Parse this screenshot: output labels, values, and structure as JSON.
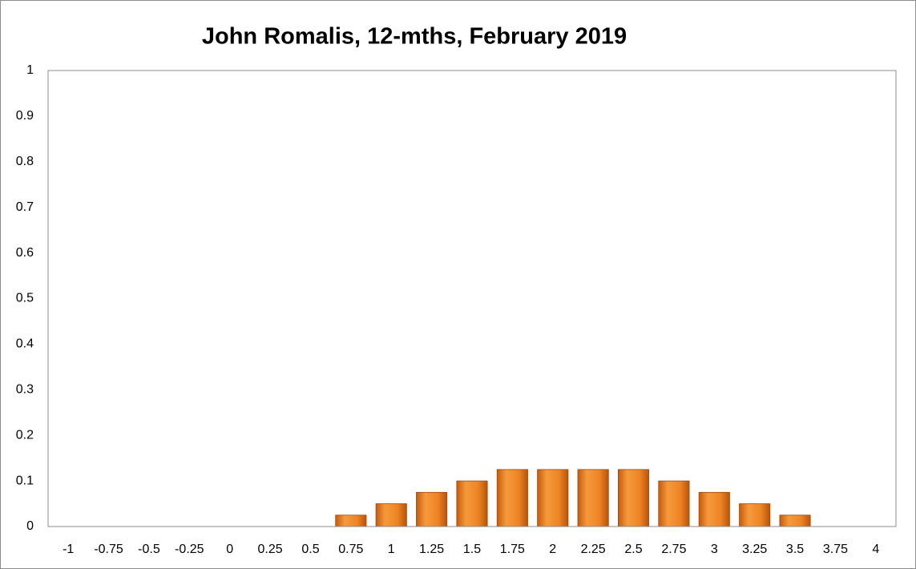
{
  "chart_data": {
    "type": "bar",
    "title": "John Romalis, 12-mths, February 2019",
    "categories": [
      "-1",
      "-0.75",
      "-0.5",
      "-0.25",
      "0",
      "0.25",
      "0.5",
      "0.75",
      "1",
      "1.25",
      "1.5",
      "1.75",
      "2",
      "2.25",
      "2.5",
      "2.75",
      "3",
      "3.25",
      "3.5",
      "3.75",
      "4"
    ],
    "values": [
      0,
      0,
      0,
      0,
      0,
      0,
      0,
      0.025,
      0.05,
      0.075,
      0.1,
      0.125,
      0.125,
      0.125,
      0.125,
      0.1,
      0.075,
      0.05,
      0.025,
      0,
      0
    ],
    "color": "#e8761a",
    "ylim": [
      0,
      1
    ],
    "yticks": [
      0,
      0.1,
      0.2,
      0.3,
      0.4,
      0.5,
      0.6,
      0.7,
      0.8,
      0.9,
      1
    ],
    "grid": false
  }
}
